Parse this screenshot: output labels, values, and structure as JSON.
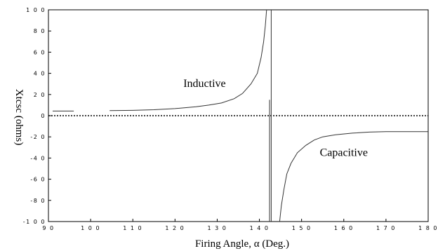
{
  "chart_data": {
    "type": "line",
    "title": "",
    "xlabel": "Firing Angle, α (Deg.)",
    "ylabel": "Xtcsc (ohms)",
    "xlim": [
      90,
      180
    ],
    "ylim": [
      -100,
      100
    ],
    "x_ticks": [
      "9 0",
      "1 0 0",
      "1 1 0",
      "1 2 0",
      "1 3 0",
      "1 4 0",
      "1 5 0",
      "1 6 0",
      "1 7 0",
      "1 8 0"
    ],
    "y_ticks": [
      "1 0 0",
      "8 0",
      "6 0",
      "4 0",
      "2 0",
      "0",
      "-2 0",
      "-4 0",
      "-6 0",
      "-8 0",
      "-1 0 0"
    ],
    "x_tick_values": [
      90,
      100,
      110,
      120,
      130,
      140,
      150,
      160,
      170,
      180
    ],
    "y_tick_values": [
      100,
      80,
      60,
      40,
      20,
      0,
      -20,
      -40,
      -60,
      -80,
      -100
    ],
    "grid": false,
    "zero_line": "dotted",
    "annotations": [
      {
        "text": "Inductive",
        "x": 127,
        "y": 27
      },
      {
        "text": "Capacitive",
        "x": 160,
        "y": -38
      }
    ],
    "series": [
      {
        "segments": [
          [
            [
              91,
              4.4
            ],
            [
              96,
              4.4
            ]
          ],
          [
            [
              104.5,
              4.8
            ],
            [
              110,
              5.0
            ],
            [
              115,
              5.6
            ],
            [
              120,
              6.7
            ],
            [
              125,
              8.4
            ],
            [
              128,
              10.0
            ],
            [
              131,
              12.0
            ],
            [
              134,
              16.0
            ],
            [
              136,
              21.0
            ],
            [
              138,
              30.0
            ],
            [
              139.5,
              40.0
            ],
            [
              140.4,
              55.0
            ],
            [
              141,
              70.0
            ],
            [
              141.4,
              85.0
            ],
            [
              141.7,
              100.0
            ]
          ],
          [
            [
              142.8,
              100.0
            ],
            [
              142.8,
              -100.0
            ]
          ],
          [
            [
              142.4,
              -100.0
            ],
            [
              142.4,
              15.0
            ]
          ],
          [
            [
              144.8,
              -100.0
            ],
            [
              145.2,
              -85.0
            ],
            [
              145.8,
              -70.0
            ],
            [
              146.5,
              -55.0
            ],
            [
              147.5,
              -45.0
            ],
            [
              149,
              -35.0
            ],
            [
              151,
              -28.0
            ],
            [
              153,
              -23.0
            ],
            [
              155,
              -20.0
            ],
            [
              158,
              -18.0
            ],
            [
              162,
              -16.5
            ],
            [
              166,
              -15.5
            ],
            [
              170,
              -15.0
            ],
            [
              175,
              -15.0
            ],
            [
              180,
              -15.0
            ]
          ]
        ]
      }
    ]
  }
}
